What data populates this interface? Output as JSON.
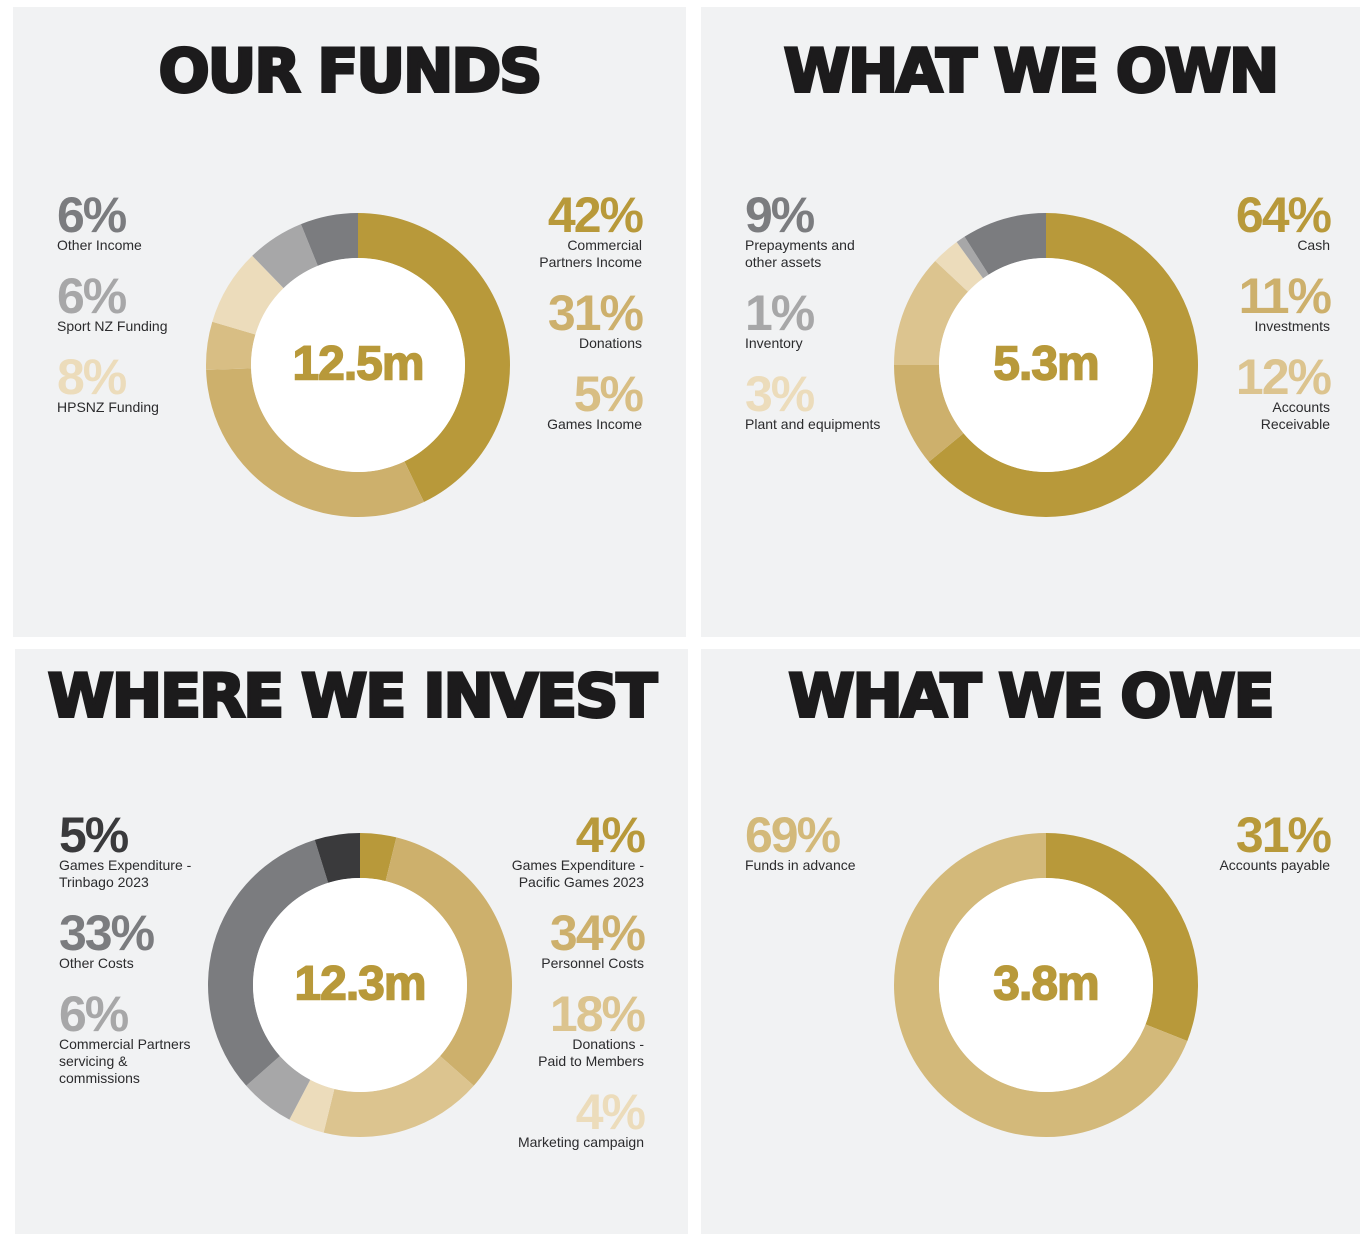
{
  "chart_data": [
    {
      "type": "pie",
      "title": "OUR FUNDS",
      "center_label": "12.5m",
      "categories": [
        "Commercial\nPartners Income",
        "Donations",
        "Games Income",
        "HPSNZ Funding",
        "Sport NZ Funding",
        "Other Income"
      ],
      "values": [
        42,
        31,
        5,
        8,
        6,
        6
      ],
      "value_labels": [
        "42%",
        "31%",
        "5%",
        "8%",
        "6%",
        "6%"
      ],
      "colors": [
        "#b8993a",
        "#cdb06c",
        "#d8be84",
        "#ecdcbb",
        "#a7a7a8",
        "#7b7c7f"
      ]
    },
    {
      "type": "pie",
      "title": "WHAT WE OWN",
      "center_label": "5.3m",
      "categories": [
        "Cash",
        "Investments",
        "Accounts\nReceivable",
        "Plant and equipments",
        "Inventory",
        "Prepayments and\nother assets"
      ],
      "values": [
        64,
        11,
        12,
        3,
        1,
        9
      ],
      "value_labels": [
        "64%",
        "11%",
        "12%",
        "3%",
        "1%",
        "9%"
      ],
      "colors": [
        "#b8993a",
        "#cdb06c",
        "#dcc48f",
        "#ecdcbb",
        "#a7a7a8",
        "#7b7c7f"
      ]
    },
    {
      "type": "pie",
      "title": "WHERE WE INVEST",
      "center_label": "12.3m",
      "categories": [
        "Games Expenditure -\nPacific Games 2023",
        "Personnel Costs",
        "Donations -\nPaid to Members",
        "Marketing campaign",
        "Commercial Partners\nservicing &\ncommissions",
        "Other Costs",
        "Games Expenditure -\nTrinbago 2023"
      ],
      "values": [
        4,
        34,
        18,
        4,
        6,
        33,
        5
      ],
      "value_labels": [
        "4%",
        "34%",
        "18%",
        "4%",
        "6%",
        "33%",
        "5%"
      ],
      "colors": [
        "#b8993a",
        "#cdb06c",
        "#dcc48f",
        "#ecdcbb",
        "#a7a7a8",
        "#7b7c7f",
        "#3a3a3c"
      ]
    },
    {
      "type": "pie",
      "title": "WHAT WE OWE",
      "center_label": "3.8m",
      "categories": [
        "Accounts payable",
        "Funds in advance"
      ],
      "values": [
        31,
        69
      ],
      "value_labels": [
        "31%",
        "69%"
      ],
      "colors": [
        "#b8993a",
        "#d3b97a"
      ]
    }
  ]
}
